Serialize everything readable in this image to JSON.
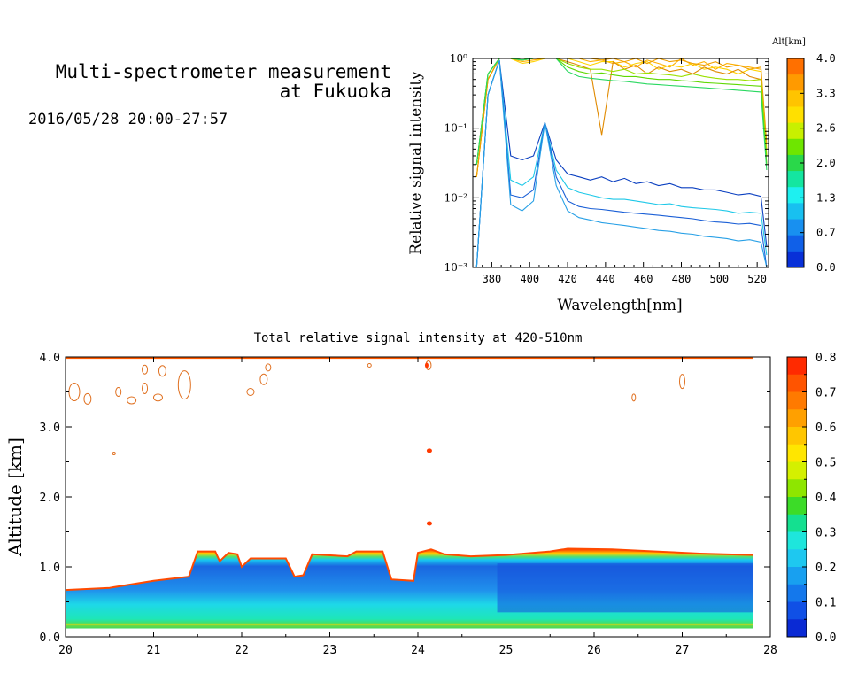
{
  "header": {
    "title_line1": "Multi-spectrometer measurement",
    "title_line2": "at Fukuoka",
    "date_range": "2016/05/28 20:00-27:57"
  },
  "chart_data": [
    {
      "type": "line",
      "xlabel": "Wavelength[nm]",
      "ylabel": "Relative signal intensity",
      "yscale": "log",
      "xlim": [
        370,
        526
      ],
      "ylim": [
        0.001,
        1
      ],
      "xticks": [
        380,
        400,
        420,
        440,
        460,
        480,
        500,
        520
      ],
      "yticks": [
        {
          "v": 0.001,
          "label": "10⁻³"
        },
        {
          "v": 0.01,
          "label": "10⁻²"
        },
        {
          "v": 0.1,
          "label": "10⁻¹"
        },
        {
          "v": 1,
          "label": "10⁰"
        }
      ],
      "x": [
        372,
        378,
        384,
        390,
        396,
        402,
        408,
        414,
        420,
        426,
        432,
        438,
        444,
        450,
        456,
        462,
        468,
        474,
        480,
        486,
        492,
        498,
        504,
        510,
        516,
        522,
        525
      ],
      "colorbar": {
        "label": "Alt[km]",
        "ticks": [
          "4.0",
          "3.3",
          "2.6",
          "2.0",
          "1.3",
          "0.7",
          "0.0"
        ],
        "colors": [
          "#ff7000",
          "#ff9a00",
          "#ffc400",
          "#ffe000",
          "#c8f000",
          "#6ee600",
          "#2ad84a",
          "#14e6a0",
          "#1ef0f0",
          "#18c0f0",
          "#1890f0",
          "#1060e8",
          "#0830d8"
        ]
      },
      "series": [
        {
          "color": "#0a3fc0",
          "values": [
            0.001,
            0.3,
            0.95,
            0.04,
            0.035,
            0.04,
            0.12,
            0.035,
            0.022,
            0.02,
            0.018,
            0.02,
            0.017,
            0.019,
            0.016,
            0.017,
            0.015,
            0.016,
            0.014,
            0.014,
            0.013,
            0.013,
            0.012,
            0.011,
            0.0115,
            0.0105,
            0.002
          ]
        },
        {
          "color": "#1ec8e8",
          "values": [
            0.001,
            0.3,
            0.95,
            0.018,
            0.015,
            0.02,
            0.12,
            0.025,
            0.014,
            0.012,
            0.011,
            0.01,
            0.0095,
            0.0095,
            0.009,
            0.0085,
            0.008,
            0.0082,
            0.0075,
            0.0072,
            0.007,
            0.0068,
            0.0065,
            0.006,
            0.0062,
            0.006,
            0.0015
          ]
        },
        {
          "color": "#1a5fd6",
          "values": [
            0.001,
            0.3,
            0.95,
            0.011,
            0.01,
            0.013,
            0.12,
            0.02,
            0.009,
            0.0075,
            0.007,
            0.0068,
            0.0065,
            0.0062,
            0.006,
            0.0058,
            0.0056,
            0.0054,
            0.0052,
            0.005,
            0.0047,
            0.0045,
            0.0044,
            0.0042,
            0.0043,
            0.004,
            0.001
          ]
        },
        {
          "color": "#28a0e6",
          "values": [
            0.001,
            0.3,
            0.95,
            0.008,
            0.0065,
            0.009,
            0.12,
            0.015,
            0.0065,
            0.0052,
            0.0048,
            0.0044,
            0.0042,
            0.004,
            0.0038,
            0.0036,
            0.0034,
            0.0033,
            0.0031,
            0.003,
            0.0028,
            0.0027,
            0.0026,
            0.0024,
            0.0025,
            0.0023,
            0.001
          ]
        },
        {
          "color": "#ffb000",
          "values": [
            0.02,
            0.5,
            1.0,
            1.0,
            0.9,
            0.95,
            1.0,
            1.0,
            1.0,
            1.0,
            0.9,
            0.95,
            0.85,
            0.9,
            0.75,
            0.95,
            0.85,
            0.75,
            1.0,
            0.8,
            0.9,
            0.7,
            0.85,
            0.8,
            0.75,
            0.7,
            0.05
          ]
        },
        {
          "color": "#ffd200",
          "values": [
            0.02,
            0.5,
            1.0,
            1.0,
            0.85,
            0.9,
            1.0,
            1.0,
            1.0,
            0.9,
            0.8,
            0.9,
            0.9,
            0.75,
            0.85,
            0.9,
            0.7,
            0.8,
            0.75,
            0.85,
            0.7,
            0.75,
            0.7,
            0.6,
            0.7,
            0.65,
            0.04
          ]
        },
        {
          "color": "#e08a00",
          "values": [
            0.02,
            0.5,
            1.0,
            1.0,
            1.0,
            1.0,
            1.0,
            1.0,
            0.9,
            0.8,
            0.7,
            0.08,
            0.9,
            0.7,
            0.8,
            0.6,
            0.75,
            0.65,
            0.7,
            0.6,
            0.75,
            0.65,
            0.6,
            0.7,
            0.55,
            0.5,
            0.03
          ]
        },
        {
          "color": "#f0a000",
          "values": [
            0.02,
            0.5,
            1.0,
            1.0,
            0.95,
            1.0,
            1.0,
            1.0,
            1.0,
            1.0,
            1.0,
            0.95,
            1.0,
            0.9,
            1.0,
            0.85,
            1.0,
            0.9,
            0.95,
            0.85,
            0.8,
            0.9,
            0.75,
            0.8,
            0.7,
            0.75,
            0.06
          ]
        },
        {
          "color": "#9be000",
          "values": [
            0.03,
            0.6,
            1.0,
            1.0,
            0.95,
            1.0,
            1.0,
            1.0,
            0.85,
            0.75,
            0.7,
            0.7,
            0.65,
            0.7,
            0.6,
            0.62,
            0.6,
            0.58,
            0.55,
            0.6,
            0.55,
            0.52,
            0.5,
            0.5,
            0.48,
            0.5,
            0.04
          ]
        },
        {
          "color": "#5ed800",
          "values": [
            0.03,
            0.6,
            1.0,
            1.0,
            0.95,
            1.0,
            1.0,
            1.0,
            0.75,
            0.65,
            0.6,
            0.62,
            0.58,
            0.55,
            0.55,
            0.52,
            0.5,
            0.5,
            0.48,
            0.47,
            0.45,
            0.44,
            0.43,
            0.42,
            0.41,
            0.4,
            0.03
          ]
        },
        {
          "color": "#2ad860",
          "values": [
            0.03,
            0.6,
            1.0,
            1.0,
            0.95,
            1.0,
            1.0,
            1.0,
            0.65,
            0.55,
            0.52,
            0.5,
            0.48,
            0.47,
            0.45,
            0.43,
            0.42,
            0.41,
            0.4,
            0.39,
            0.38,
            0.37,
            0.36,
            0.35,
            0.34,
            0.33,
            0.025
          ]
        }
      ]
    },
    {
      "type": "heatmap",
      "title": "Total relative signal intensity at 420-510nm",
      "xlabel": "",
      "ylabel": "Altitude [km]",
      "xlim": [
        20,
        28
      ],
      "ylim": [
        0.0,
        4.0
      ],
      "xticks": [
        "20",
        "21",
        "22",
        "23",
        "24",
        "25",
        "26",
        "27",
        "28"
      ],
      "yticks": [
        "0.0",
        "1.0",
        "2.0",
        "3.0",
        "4.0"
      ],
      "data_end_x": 27.8,
      "cloud_top_km": [
        [
          20.0,
          0.67
        ],
        [
          20.5,
          0.7
        ],
        [
          21.0,
          0.8
        ],
        [
          21.4,
          0.86
        ],
        [
          21.5,
          1.22
        ],
        [
          21.7,
          1.22
        ],
        [
          21.75,
          1.08
        ],
        [
          21.85,
          1.2
        ],
        [
          21.95,
          1.18
        ],
        [
          22.0,
          1.0
        ],
        [
          22.1,
          1.12
        ],
        [
          22.5,
          1.12
        ],
        [
          22.6,
          0.86
        ],
        [
          22.7,
          0.88
        ],
        [
          22.8,
          1.18
        ],
        [
          23.2,
          1.15
        ],
        [
          23.3,
          1.22
        ],
        [
          23.6,
          1.22
        ],
        [
          23.7,
          0.82
        ],
        [
          23.95,
          0.8
        ],
        [
          24.0,
          1.2
        ],
        [
          24.15,
          1.25
        ],
        [
          24.3,
          1.18
        ],
        [
          24.6,
          1.15
        ],
        [
          25.0,
          1.17
        ],
        [
          25.5,
          1.22
        ],
        [
          25.7,
          1.26
        ],
        [
          26.2,
          1.25
        ],
        [
          26.7,
          1.22
        ],
        [
          27.2,
          1.19
        ],
        [
          27.8,
          1.17
        ]
      ],
      "clear_sky_contour_km": 4.0,
      "colorbar": {
        "ticks": [
          "0.8",
          "0.7",
          "0.6",
          "0.5",
          "0.4",
          "0.3",
          "0.2",
          "0.1",
          "0.0"
        ],
        "colors": [
          "#ff2a00",
          "#ff5400",
          "#ff7a00",
          "#ffa000",
          "#ffc600",
          "#ffe600",
          "#d4f000",
          "#8ee600",
          "#3cdc28",
          "#14e090",
          "#1ee6dc",
          "#1ec8f0",
          "#18a0f0",
          "#1478ec",
          "#1050e6",
          "#0a2ad4"
        ]
      }
    }
  ]
}
